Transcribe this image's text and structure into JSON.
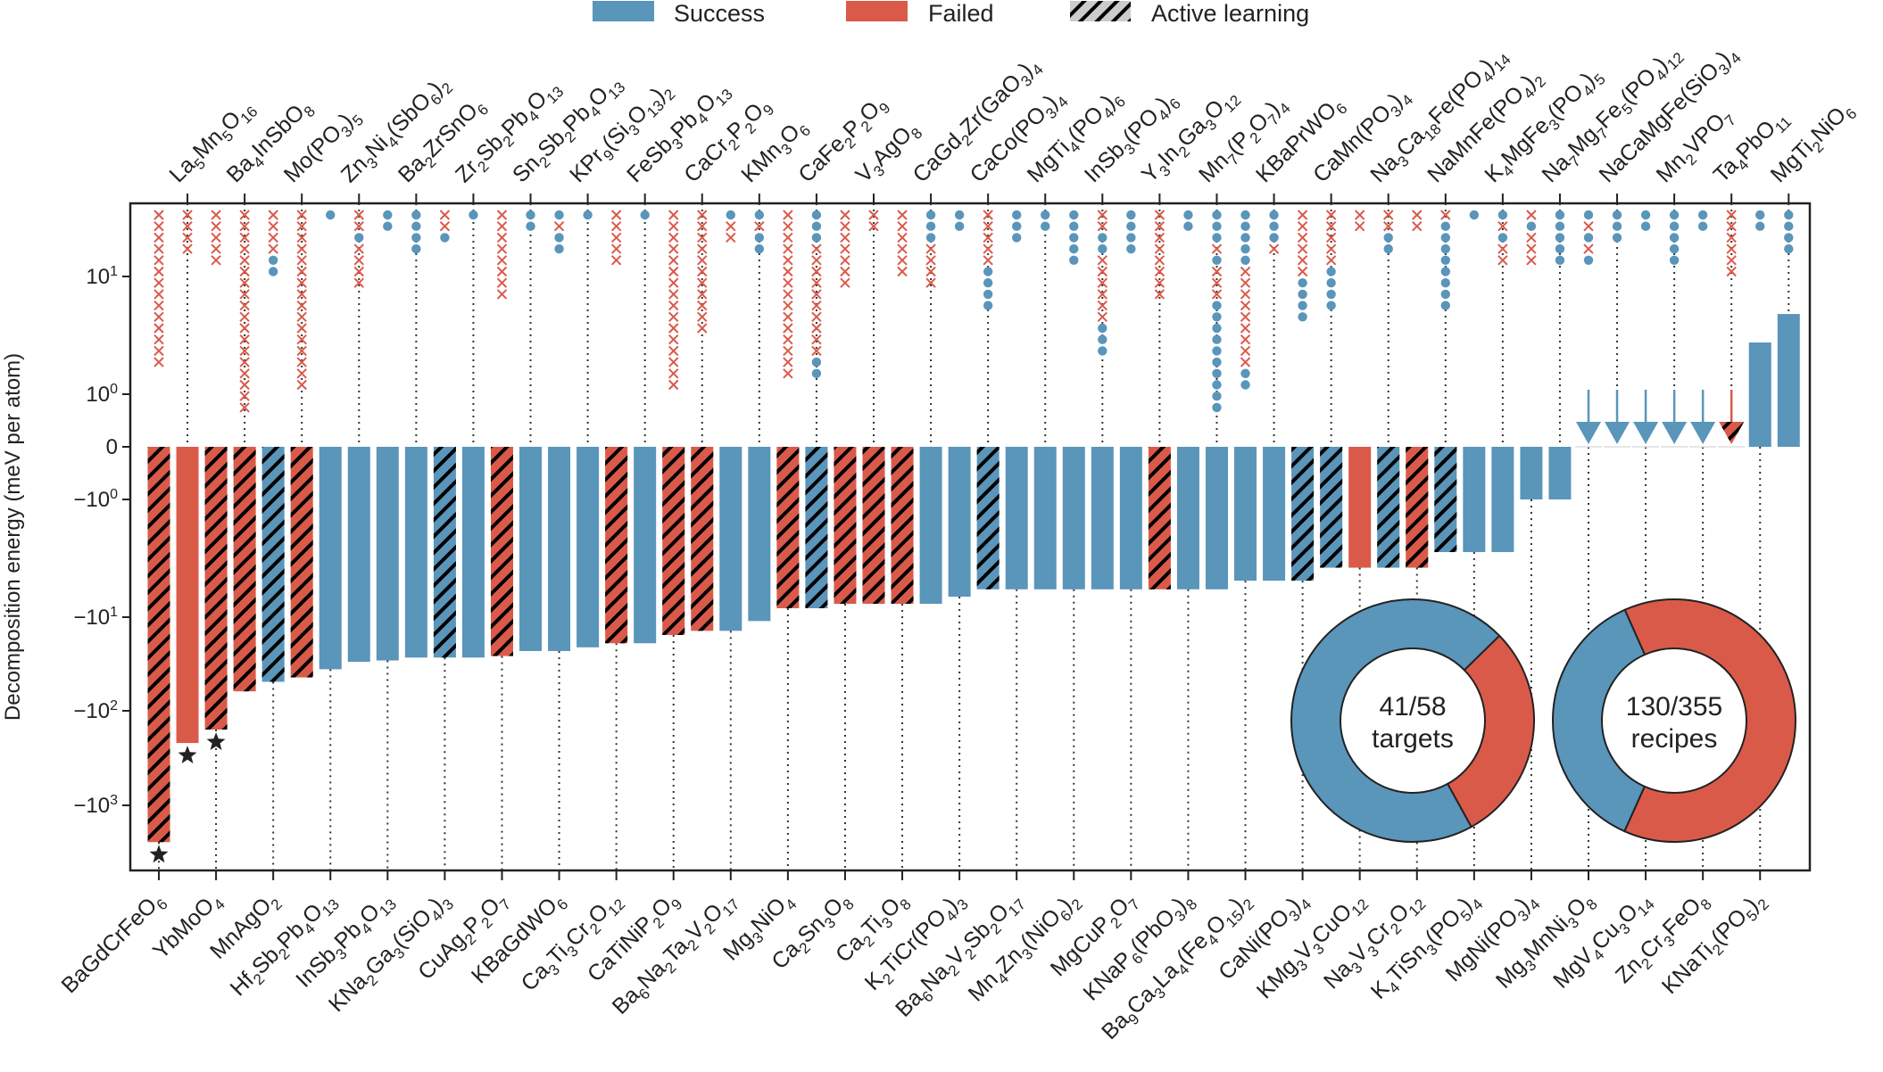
{
  "chart_data": {
    "type": "bar",
    "ylabel": "Decomposition energy (meV per atom)",
    "yscale": "symlog",
    "yticks": [
      {
        "label": "10",
        "exp": "1",
        "value": 10
      },
      {
        "label": "10",
        "exp": "0",
        "value": 1
      },
      {
        "label": "0",
        "exp": "",
        "value": 0
      },
      {
        "label": "−10",
        "exp": "0",
        "value": -1
      },
      {
        "label": "−10",
        "exp": "1",
        "value": -10
      },
      {
        "label": "−10",
        "exp": "2",
        "value": -100
      },
      {
        "label": "−10",
        "exp": "3",
        "value": -1000
      }
    ],
    "legend": {
      "placement": "top-center",
      "items": [
        {
          "label": "Success",
          "kind": "success"
        },
        {
          "label": "Failed",
          "kind": "failed"
        },
        {
          "label": "Active learning",
          "kind": "hatch"
        }
      ]
    },
    "colors": {
      "success": "#5A95BA",
      "failed": "#DA5A4A",
      "hatch": "#000000",
      "hatch_bg": "#CCCCCC"
    },
    "recipe_markers": {
      "S": "success (circle)",
      "F": "failed (cross)"
    },
    "targets": [
      {
        "name": "BaGdCrFeO6",
        "value": -2450,
        "outcome": "failed",
        "active_learning": true,
        "recipes": "FFFFFFFFFFFFFF",
        "star": true
      },
      {
        "name": "La5Mn5O16",
        "value": -219,
        "outcome": "failed",
        "active_learning": false,
        "recipes": "FFFF",
        "star": true
      },
      {
        "name": "YbMoO4",
        "value": -158,
        "outcome": "failed",
        "active_learning": true,
        "recipes": "FFFFF",
        "star": true
      },
      {
        "name": "Ba4InSbO8",
        "value": -62,
        "outcome": "failed",
        "active_learning": true,
        "recipes": "FFFFFFFFFFFFFFFFFF"
      },
      {
        "name": "MnAgO2",
        "value": -49,
        "outcome": "success",
        "active_learning": true,
        "recipes": "FFFFSS"
      },
      {
        "name": "Mo(PO3)5",
        "value": -44,
        "outcome": "failed",
        "active_learning": true,
        "recipes": "FFFFFFFFFFFFFFFF"
      },
      {
        "name": "Hf2Sb2Pb4O13",
        "value": -36,
        "outcome": "success",
        "active_learning": false,
        "recipes": "S"
      },
      {
        "name": "Zn3Ni4(SbO6)2",
        "value": -30,
        "outcome": "success",
        "active_learning": false,
        "recipes": "FFSFFFF"
      },
      {
        "name": "InSb3Pb4O13",
        "value": -29,
        "outcome": "success",
        "active_learning": false,
        "recipes": "SS"
      },
      {
        "name": "Ba2ZrSnO6",
        "value": -27,
        "outcome": "success",
        "active_learning": false,
        "recipes": "SSSS"
      },
      {
        "name": "KNa2Ga3(SiO4)3",
        "value": -27,
        "outcome": "success",
        "active_learning": true,
        "recipes": "FFS"
      },
      {
        "name": "Zr2Sb2Pb4O13",
        "value": -27,
        "outcome": "success",
        "active_learning": false,
        "recipes": "S"
      },
      {
        "name": "CuAg2P2O7",
        "value": -26,
        "outcome": "failed",
        "active_learning": true,
        "recipes": "FFFFFFFF"
      },
      {
        "name": "Sn2Sb2Pb4O13",
        "value": -23,
        "outcome": "success",
        "active_learning": false,
        "recipes": "SS"
      },
      {
        "name": "KBaGdWO6",
        "value": -23,
        "outcome": "success",
        "active_learning": false,
        "recipes": "SFSS"
      },
      {
        "name": "KPr9(Si3O13)2",
        "value": -21,
        "outcome": "success",
        "active_learning": false,
        "recipes": "S"
      },
      {
        "name": "Ca3Ti3Cr2O12",
        "value": -19,
        "outcome": "failed",
        "active_learning": true,
        "recipes": "FFFFF"
      },
      {
        "name": "FeSb3Pb4O13",
        "value": -19,
        "outcome": "success",
        "active_learning": false,
        "recipes": "S"
      },
      {
        "name": "CaTiNiP2O9",
        "value": -15.5,
        "outcome": "failed",
        "active_learning": true,
        "recipes": "FFFFFFFFFFFFFFFF"
      },
      {
        "name": "CaCr2P2O9",
        "value": -14,
        "outcome": "failed",
        "active_learning": true,
        "recipes": "FFFFFFFFFFF"
      },
      {
        "name": "Ba6Na2Ta2V2O17",
        "value": -14,
        "outcome": "success",
        "active_learning": false,
        "recipes": "SFF"
      },
      {
        "name": "KMn3O6",
        "value": -11,
        "outcome": "success",
        "active_learning": false,
        "recipes": "SFSS"
      },
      {
        "name": "Mg3NiO4",
        "value": -8.4,
        "outcome": "failed",
        "active_learning": true,
        "recipes": "FFFFFFFFFFFFFFF"
      },
      {
        "name": "CaFe2P2O9",
        "value": -8.4,
        "outcome": "success",
        "active_learning": true,
        "recipes": "SSSFFFFFFFFFFSS"
      },
      {
        "name": "Ca2Sn3O8",
        "value": -7.7,
        "outcome": "failed",
        "active_learning": true,
        "recipes": "FFFFFFF"
      },
      {
        "name": "V3AgO8",
        "value": -7.7,
        "outcome": "failed",
        "active_learning": true,
        "recipes": "FF"
      },
      {
        "name": "Ca2Ti3O8",
        "value": -7.7,
        "outcome": "failed",
        "active_learning": true,
        "recipes": "FFFFFF"
      },
      {
        "name": "CaGd2Zr(GaO3)4",
        "value": -7.7,
        "outcome": "success",
        "active_learning": false,
        "recipes": "SSSFFFF"
      },
      {
        "name": "K2TiCr(PO4)3",
        "value": -6.7,
        "outcome": "success",
        "active_learning": false,
        "recipes": "SS"
      },
      {
        "name": "CaCo(PO3)4",
        "value": -5.8,
        "outcome": "success",
        "active_learning": true,
        "recipes": "FFFFFSSSS"
      },
      {
        "name": "Ba6Na2V2Sb2O17",
        "value": -5.8,
        "outcome": "success",
        "active_learning": false,
        "recipes": "SSS"
      },
      {
        "name": "MgTi4(PO4)6",
        "value": -5.8,
        "outcome": "success",
        "active_learning": false,
        "recipes": "SS"
      },
      {
        "name": "Mn4Zn3(NiO6)2",
        "value": -5.8,
        "outcome": "success",
        "active_learning": false,
        "recipes": "SSSSS"
      },
      {
        "name": "InSb3(PO4)6",
        "value": -5.8,
        "outcome": "success",
        "active_learning": false,
        "recipes": "FFSSFFFFFFSSS"
      },
      {
        "name": "MgCuP2O7",
        "value": -5.8,
        "outcome": "success",
        "active_learning": false,
        "recipes": "SSSS"
      },
      {
        "name": "Y3In2Ga3O12",
        "value": -5.8,
        "outcome": "failed",
        "active_learning": true,
        "recipes": "FFFFFFFF"
      },
      {
        "name": "KNaP6(PbO3)8",
        "value": -5.8,
        "outcome": "success",
        "active_learning": false,
        "recipes": "SS"
      },
      {
        "name": "Mn7(P2O7)4",
        "value": -5.8,
        "outcome": "success",
        "active_learning": false,
        "recipes": "SSSFSFFFSSSSSSSSSS"
      },
      {
        "name": "Ba9Ca3La4(Fe4O15)2",
        "value": -4.9,
        "outcome": "success",
        "active_learning": false,
        "recipes": "SSSSSFFFFFFFFFSS"
      },
      {
        "name": "KBaPrWO6",
        "value": -4.9,
        "outcome": "success",
        "active_learning": false,
        "recipes": "SSSF"
      },
      {
        "name": "CaNi(PO3)4",
        "value": -4.9,
        "outcome": "success",
        "active_learning": true,
        "recipes": "FFFFFFSSSS"
      },
      {
        "name": "CaMn(PO3)4",
        "value": -3.8,
        "outcome": "success",
        "active_learning": true,
        "recipes": "FFFFFSSSS"
      },
      {
        "name": "KMg3V3CuO12",
        "value": -3.8,
        "outcome": "failed",
        "active_learning": false,
        "recipes": "FF"
      },
      {
        "name": "Na3Ca18Fe(PO4)14",
        "value": -3.8,
        "outcome": "success",
        "active_learning": true,
        "recipes": "FFSS"
      },
      {
        "name": "Na3V3Cr2O12",
        "value": -3.8,
        "outcome": "failed",
        "active_learning": true,
        "recipes": "FF"
      },
      {
        "name": "NaMnFe(PO4)2",
        "value": -2.8,
        "outcome": "success",
        "active_learning": true,
        "recipes": "FSSSSSSSS"
      },
      {
        "name": "K4TiSn3(PO5)4",
        "value": -2.8,
        "outcome": "success",
        "active_learning": false,
        "recipes": "S"
      },
      {
        "name": "K4MgFe3(PO4)5",
        "value": -2.8,
        "outcome": "success",
        "active_learning": false,
        "recipes": "SFSFF"
      },
      {
        "name": "MgNi(PO3)4",
        "value": -1.0,
        "outcome": "success",
        "active_learning": false,
        "recipes": "FSFFF"
      },
      {
        "name": "Na7Mg7Fe5(PO4)12",
        "value": -1.0,
        "outcome": "success",
        "active_learning": false,
        "recipes": "SSSSS"
      },
      {
        "name": "Mg3MnNi3O8",
        "value": 0,
        "arrow": true,
        "outcome": "success",
        "active_learning": false,
        "recipes": "SFSFS"
      },
      {
        "name": "NaCaMgFe(SiO3)4",
        "value": 0,
        "arrow": true,
        "outcome": "success",
        "active_learning": false,
        "recipes": "SSS"
      },
      {
        "name": "MgV4Cu3O14",
        "value": 0,
        "arrow": true,
        "outcome": "success",
        "active_learning": false,
        "recipes": "SS"
      },
      {
        "name": "Mn2VPO7",
        "value": 0,
        "arrow": true,
        "outcome": "success",
        "active_learning": false,
        "recipes": "SSSSS"
      },
      {
        "name": "Zn2Cr3FeO8",
        "value": 0,
        "arrow": true,
        "outcome": "success",
        "active_learning": false,
        "recipes": "SS"
      },
      {
        "name": "Ta4PbO11",
        "value": 0,
        "arrow": true,
        "outcome": "failed",
        "active_learning": true,
        "recipes": "FFFFFF"
      },
      {
        "name": "KNaTi2(PO5)2",
        "value": 2.75,
        "outcome": "success",
        "active_learning": false,
        "recipes": "SS"
      },
      {
        "name": "MgTi2NiO6",
        "value": 4.8,
        "outcome": "success",
        "active_learning": false,
        "recipes": "SSSS"
      }
    ],
    "donuts": [
      {
        "success": 41,
        "total": 58,
        "line1": "41/58",
        "line2": "targets"
      },
      {
        "success": 130,
        "total": 355,
        "line1": "130/355",
        "line2": "recipes"
      }
    ]
  }
}
